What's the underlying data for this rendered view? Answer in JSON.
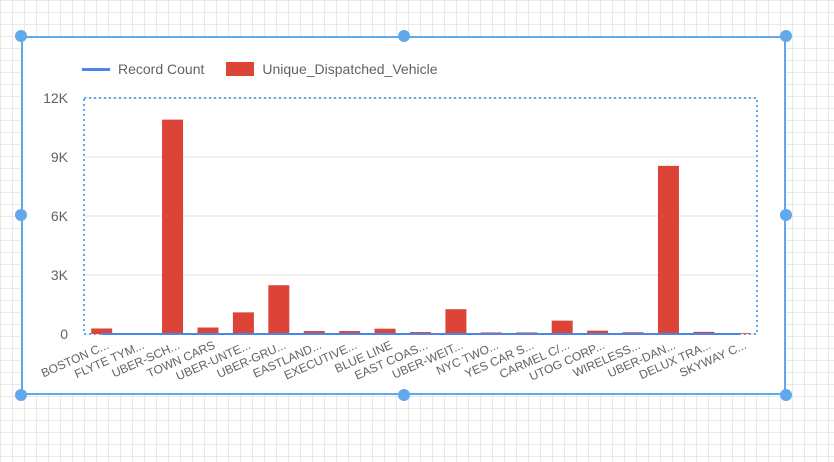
{
  "chart_data": {
    "type": "bar",
    "categories": [
      "BOSTON C...",
      "FLYTE TYM...",
      "UBER-SCH...",
      "TOWN CARS",
      "UBER-UNTE...",
      "UBER-GRU...",
      "EASTLAND...",
      "EXECUTIVE...",
      "BLUE LINE",
      "EAST COAS...",
      "UBER-WEIT...",
      "NYC TWO...",
      "YES CAR S...",
      "CARMEL C/...",
      "UTOG CORP...",
      "WIRELESS...",
      "UBER-DAN...",
      "DELUX TRA...",
      "SKYWAY C..."
    ],
    "series": [
      {
        "name": "Record Count",
        "type": "line",
        "color": "#4a86e8",
        "values": [
          0,
          0,
          0,
          0,
          0,
          0,
          0,
          0,
          0,
          0,
          0,
          0,
          0,
          0,
          0,
          0,
          0,
          0,
          0
        ]
      },
      {
        "name": "Unique_Dispatched_Vehicle",
        "type": "bar",
        "color": "#db4437",
        "values": [
          280,
          0,
          10900,
          330,
          1100,
          2480,
          150,
          150,
          270,
          100,
          1260,
          80,
          80,
          680,
          170,
          90,
          8550,
          110,
          40
        ]
      }
    ],
    "yticks": [
      "12K",
      "9K",
      "6K",
      "3K",
      "0"
    ],
    "ylim": [
      0,
      12000
    ],
    "grid": true,
    "legend_position": "top-left",
    "title": "",
    "xlabel": "",
    "ylabel": ""
  },
  "legend": {
    "items": [
      {
        "label": "Record Count",
        "style": "line",
        "color": "#4a86e8"
      },
      {
        "label": "Unique_Dispatched_Vehicle",
        "style": "box",
        "color": "#db4437"
      }
    ]
  },
  "colors": {
    "selection": "#62a9ec",
    "grid": "#e0e0e0",
    "axis_text": "#5f6368"
  }
}
